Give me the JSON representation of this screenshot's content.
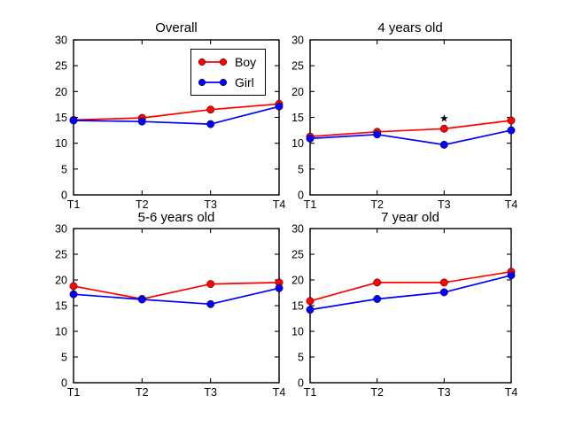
{
  "figure": {
    "background": "#ffffff"
  },
  "colors": {
    "boy": "#ff0000",
    "girl": "#0000ff",
    "axis": "#000000",
    "annotation": "#000000"
  },
  "legend": {
    "position": "upper right of first subplot"
  },
  "chart_data": [
    {
      "type": "line",
      "title": "Overall",
      "categories": [
        "T1",
        "T2",
        "T3",
        "T4"
      ],
      "series": [
        {
          "name": "Boy",
          "color_key": "boy",
          "values": [
            14.5,
            14.9,
            16.5,
            17.6
          ]
        },
        {
          "name": "Girl",
          "color_key": "girl",
          "values": [
            14.4,
            14.2,
            13.7,
            17.1
          ]
        }
      ],
      "ylim": [
        0,
        30
      ],
      "yticks": [
        0,
        5,
        10,
        15,
        20,
        25,
        30
      ],
      "grid": false,
      "legend": true
    },
    {
      "type": "line",
      "title": "4 years old",
      "categories": [
        "T1",
        "T2",
        "T3",
        "T4"
      ],
      "series": [
        {
          "name": "Boy",
          "color_key": "boy",
          "values": [
            11.3,
            12.2,
            12.8,
            14.4
          ]
        },
        {
          "name": "Girl",
          "color_key": "girl",
          "values": [
            10.9,
            11.7,
            9.7,
            12.5
          ]
        }
      ],
      "ylim": [
        0,
        30
      ],
      "yticks": [
        0,
        5,
        10,
        15,
        20,
        25,
        30
      ],
      "grid": false,
      "legend": false,
      "annotations": [
        {
          "marker": "star",
          "category": "T3",
          "y": 14.8
        }
      ]
    },
    {
      "type": "line",
      "title": "5-6 years old",
      "categories": [
        "T1",
        "T2",
        "T3",
        "T4"
      ],
      "series": [
        {
          "name": "Boy",
          "color_key": "boy",
          "values": [
            18.8,
            16.3,
            19.2,
            19.5
          ]
        },
        {
          "name": "Girl",
          "color_key": "girl",
          "values": [
            17.2,
            16.2,
            15.3,
            18.4
          ]
        }
      ],
      "ylim": [
        0,
        30
      ],
      "yticks": [
        0,
        5,
        10,
        15,
        20,
        25,
        30
      ],
      "grid": false,
      "legend": false
    },
    {
      "type": "line",
      "title": "7 year old",
      "categories": [
        "T1",
        "T2",
        "T3",
        "T4"
      ],
      "series": [
        {
          "name": "Boy",
          "color_key": "boy",
          "values": [
            15.9,
            19.5,
            19.5,
            21.6
          ]
        },
        {
          "name": "Girl",
          "color_key": "girl",
          "values": [
            14.2,
            16.3,
            17.6,
            20.9
          ]
        }
      ],
      "ylim": [
        0,
        30
      ],
      "yticks": [
        0,
        5,
        10,
        15,
        20,
        25,
        30
      ],
      "grid": false,
      "legend": false
    }
  ]
}
